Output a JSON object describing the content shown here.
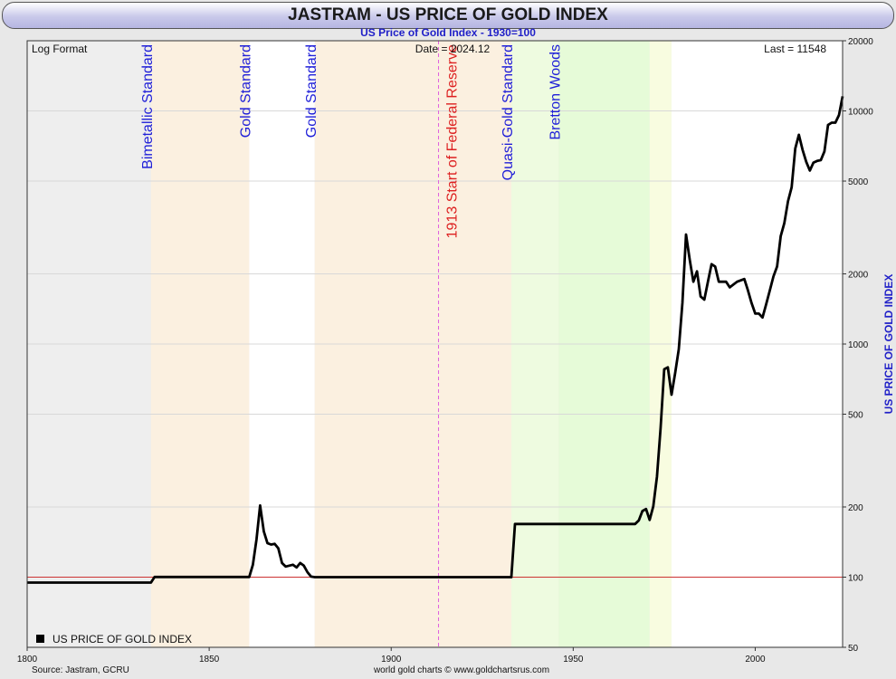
{
  "header": {
    "title": "JASTRAM - US PRICE OF GOLD INDEX",
    "subtitle": "US Price of Gold Index - 1930=100"
  },
  "plot_info": {
    "format_label": "Log Format",
    "date_label": "Date = 2024.12",
    "last_label": "Last = 11548",
    "legend_label": "US PRICE OF GOLD INDEX",
    "y_axis_title": "US PRICE OF GOLD INDEX"
  },
  "footer": {
    "source": "Source: Jastram, GCRU",
    "credit": "world gold charts © www.goldchartsrus.com"
  },
  "colors": {
    "series": "#000000",
    "regime_label": "#2020d8",
    "fed_label": "#dd2020",
    "reference_line": "#cc3333"
  },
  "chart_data": {
    "type": "line",
    "y_scale": "log",
    "xlim": [
      1800,
      2024
    ],
    "ylim": [
      50,
      20000
    ],
    "x_ticks": [
      "1800",
      "1850",
      "1900",
      "1950",
      "2000"
    ],
    "y_ticks": [
      "50",
      "100",
      "200",
      "500",
      "1000",
      "2000",
      "5000",
      "10000",
      "20000"
    ],
    "reference_line": 100,
    "regimes": [
      {
        "label": "",
        "start": 1800,
        "end": 1834,
        "fill": "#eeeeee"
      },
      {
        "label": "Bimetallic Standard",
        "start": 1834,
        "end": 1861,
        "fill": "#fbf0e0"
      },
      {
        "label": "Gold Standard",
        "start": 1861,
        "end": 1879,
        "fill": "#ffffff"
      },
      {
        "label": "Gold Standard",
        "start": 1879,
        "end": 1933,
        "fill": "#fbf0e0"
      },
      {
        "label": "Quasi-Gold Standard",
        "start": 1933,
        "end": 1946,
        "fill": "#eefbe0"
      },
      {
        "label": "Bretton Woods",
        "start": 1946,
        "end": 1971,
        "fill": "#e6fbd8"
      },
      {
        "label": "",
        "start": 1971,
        "end": 1977,
        "fill": "#f8fce0"
      },
      {
        "label": "",
        "start": 1977,
        "end": 2024,
        "fill": "#ffffff"
      }
    ],
    "events": [
      {
        "label": "1913 Start of Federal Reserve",
        "x": 1913
      }
    ],
    "series": [
      {
        "name": "US PRICE OF GOLD INDEX",
        "points": [
          [
            1800,
            94.8
          ],
          [
            1834,
            94.8
          ],
          [
            1835,
            100.2
          ],
          [
            1861,
            100.2
          ],
          [
            1862,
            113
          ],
          [
            1863,
            145
          ],
          [
            1864,
            203
          ],
          [
            1865,
            157
          ],
          [
            1866,
            140
          ],
          [
            1867,
            138
          ],
          [
            1868,
            139
          ],
          [
            1869,
            133
          ],
          [
            1870,
            115
          ],
          [
            1871,
            111
          ],
          [
            1872,
            112
          ],
          [
            1873,
            113
          ],
          [
            1874,
            110
          ],
          [
            1875,
            115
          ],
          [
            1876,
            112
          ],
          [
            1877,
            105
          ],
          [
            1878,
            100.5
          ],
          [
            1879,
            100
          ],
          [
            1933,
            100
          ],
          [
            1934,
            169
          ],
          [
            1967,
            169
          ],
          [
            1968,
            175
          ],
          [
            1969,
            192
          ],
          [
            1970,
            196
          ],
          [
            1971,
            176
          ],
          [
            1972,
            201
          ],
          [
            1973,
            270
          ],
          [
            1974,
            436
          ],
          [
            1975,
            779
          ],
          [
            1976,
            795
          ],
          [
            1977,
            606
          ],
          [
            1978,
            751
          ],
          [
            1979,
            950
          ],
          [
            1980,
            1500
          ],
          [
            1981,
            2950
          ],
          [
            1982,
            2300
          ],
          [
            1983,
            1850
          ],
          [
            1984,
            2050
          ],
          [
            1985,
            1600
          ],
          [
            1986,
            1550
          ],
          [
            1987,
            1850
          ],
          [
            1988,
            2200
          ],
          [
            1989,
            2150
          ],
          [
            1990,
            1850
          ],
          [
            1992,
            1850
          ],
          [
            1993,
            1750
          ],
          [
            1995,
            1850
          ],
          [
            1997,
            1900
          ],
          [
            1998,
            1700
          ],
          [
            1999,
            1500
          ],
          [
            2000,
            1350
          ],
          [
            2001,
            1350
          ],
          [
            2002,
            1300
          ],
          [
            2003,
            1480
          ],
          [
            2004,
            1700
          ],
          [
            2005,
            1950
          ],
          [
            2006,
            2150
          ],
          [
            2007,
            2900
          ],
          [
            2008,
            3300
          ],
          [
            2009,
            4100
          ],
          [
            2010,
            4700
          ],
          [
            2011,
            6900
          ],
          [
            2012,
            7900
          ],
          [
            2013,
            6800
          ],
          [
            2014,
            6050
          ],
          [
            2015,
            5550
          ],
          [
            2016,
            6000
          ],
          [
            2017,
            6100
          ],
          [
            2018,
            6150
          ],
          [
            2019,
            6700
          ],
          [
            2020,
            8700
          ],
          [
            2021,
            8900
          ],
          [
            2022,
            8900
          ],
          [
            2023,
            9600
          ],
          [
            2024,
            11548
          ]
        ]
      }
    ]
  }
}
